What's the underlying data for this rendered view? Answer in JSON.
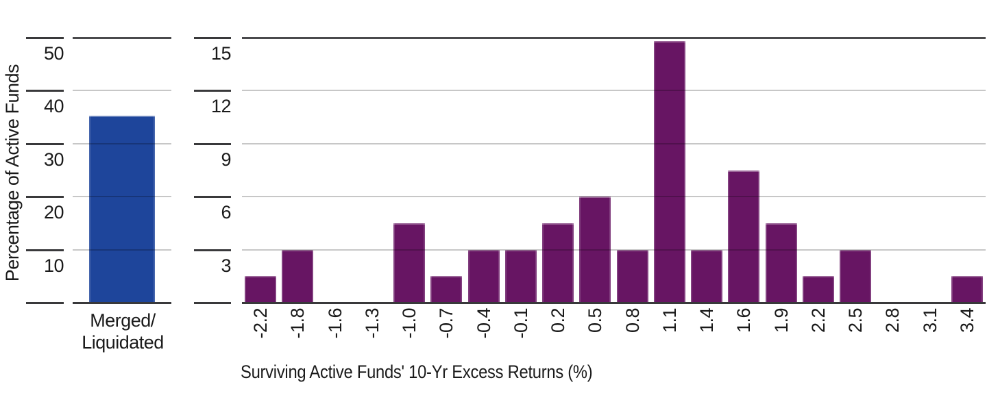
{
  "labels": {
    "y_axis_title": "Percentage of Active Funds",
    "x_axis_title": "Surviving Active Funds' 10-Yr Excess Returns (%)",
    "merged_category_line1": "Merged/",
    "merged_category_line2": "Liquidated"
  },
  "colors": {
    "background": "#ffffff",
    "blue_bar": "#1E459B",
    "purple_bar": "#671563",
    "grid_light": "#c8c8c8",
    "axis_dark": "#39393b",
    "frame_top": "#4a4a4c",
    "text": "#1a1a1a"
  },
  "chart_data": [
    {
      "id": "merged-liquidated-panel",
      "type": "bar",
      "categories": [
        "Merged/ Liquidated"
      ],
      "values": [
        35.3
      ],
      "title": "",
      "xlabel": "",
      "ylabel": "Percentage of Active Funds",
      "yticks": [
        "50",
        "40",
        "30",
        "20",
        "10"
      ],
      "ylim": [
        0,
        50
      ],
      "grid": true,
      "legend": "none",
      "bar_color": "#1E459B"
    },
    {
      "id": "surviving-funds-excess-returns-histogram",
      "type": "bar",
      "categories": [
        "-2.2",
        "-1.8",
        "-1.6",
        "-1.3",
        "-1.0",
        "-0.7",
        "-0.4",
        "-0.1",
        "0.2",
        "0.5",
        "0.8",
        "1.1",
        "1.4",
        "1.6",
        "1.9",
        "2.2",
        "2.5",
        "2.8",
        "3.1",
        "3.4"
      ],
      "values": [
        1.5,
        3,
        0,
        0,
        4.5,
        1.5,
        3,
        3,
        4.5,
        6,
        3,
        14.8,
        3,
        7.5,
        4.5,
        1.5,
        3,
        0,
        0,
        1.5
      ],
      "title": "",
      "xlabel": "Surviving Active Funds' 10-Yr Excess Returns (%)",
      "ylabel": "",
      "yticks": [
        "15",
        "12",
        "9",
        "6",
        "3"
      ],
      "ylim": [
        0,
        15
      ],
      "grid": true,
      "legend": "none",
      "bar_color": "#671563"
    }
  ]
}
